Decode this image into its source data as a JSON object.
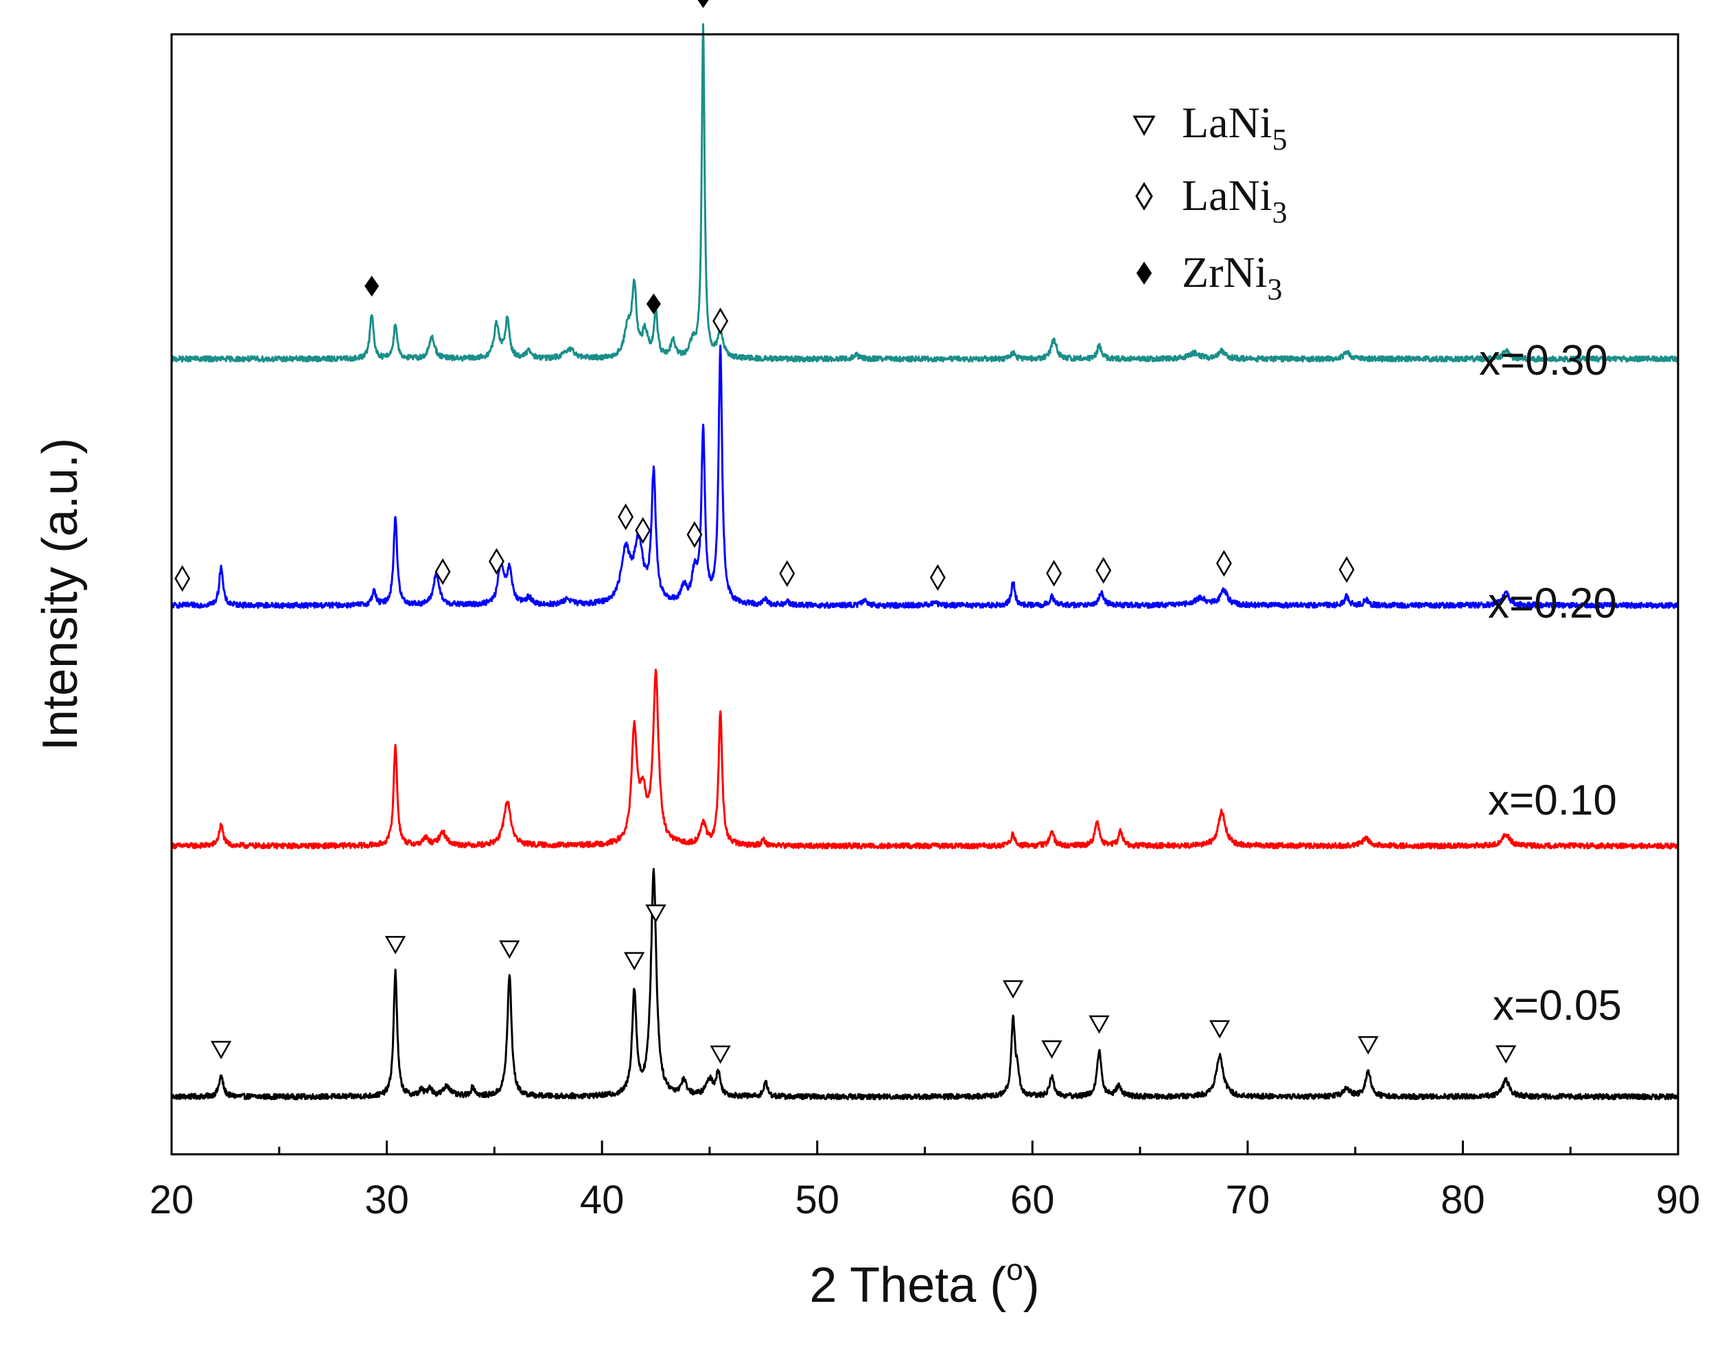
{
  "chart_data": {
    "type": "line",
    "title": "",
    "xlabel": "2 Theta (",
    "xlabel_sup": "o",
    "xlabel_close": ")",
    "ylabel": "Intensity (a.u.)",
    "xlim": [
      20,
      90
    ],
    "x_ticks": [
      20,
      30,
      40,
      50,
      60,
      70,
      80,
      90
    ],
    "x_tick_labels": [
      "20",
      "30",
      "40",
      "50",
      "60",
      "70",
      "80",
      "90"
    ],
    "y_ticks_shown": false,
    "grid": false,
    "legend": {
      "placement": "top-right",
      "entries": [
        {
          "marker": "down-triangle-open",
          "name": "LaNi",
          "sub": "5"
        },
        {
          "marker": "diamond-open",
          "name": "LaNi",
          "sub": "3"
        },
        {
          "marker": "diamond-filled",
          "name": "ZrNi",
          "sub": "3"
        }
      ]
    },
    "series": [
      {
        "name": "x=0.05",
        "color": "#000000",
        "baseline": 0,
        "noise": 0.18,
        "peaks": [
          {
            "x": 22.3,
            "h": 1.4,
            "w": 0.12
          },
          {
            "x": 30.4,
            "h": 8.5,
            "w": 0.1
          },
          {
            "x": 31.6,
            "h": 0.4,
            "w": 0.12
          },
          {
            "x": 32.0,
            "h": 0.6,
            "w": 0.12
          },
          {
            "x": 32.8,
            "h": 0.7,
            "w": 0.2
          },
          {
            "x": 34.0,
            "h": 0.6,
            "w": 0.12
          },
          {
            "x": 35.7,
            "h": 8.2,
            "w": 0.12
          },
          {
            "x": 41.5,
            "h": 7.0,
            "w": 0.12
          },
          {
            "x": 42.4,
            "h": 15.2,
            "w": 0.15
          },
          {
            "x": 43.8,
            "h": 1.0,
            "w": 0.15
          },
          {
            "x": 45.0,
            "h": 1.1,
            "w": 0.2
          },
          {
            "x": 45.4,
            "h": 1.5,
            "w": 0.12
          },
          {
            "x": 47.6,
            "h": 1.0,
            "w": 0.1
          },
          {
            "x": 59.1,
            "h": 5.2,
            "w": 0.1
          },
          {
            "x": 59.3,
            "h": 1.5,
            "w": 0.1
          },
          {
            "x": 60.9,
            "h": 1.4,
            "w": 0.12
          },
          {
            "x": 63.1,
            "h": 3.1,
            "w": 0.12
          },
          {
            "x": 64.0,
            "h": 0.7,
            "w": 0.15
          },
          {
            "x": 68.7,
            "h": 2.8,
            "w": 0.2
          },
          {
            "x": 74.6,
            "h": 0.5,
            "w": 0.2
          },
          {
            "x": 75.6,
            "h": 1.7,
            "w": 0.15
          },
          {
            "x": 82.0,
            "h": 1.1,
            "w": 0.2
          }
        ]
      },
      {
        "name": "x=0.10",
        "color": "#ff0000",
        "baseline": 17,
        "noise": 0.18,
        "peaks": [
          {
            "x": 22.3,
            "h": 1.4,
            "w": 0.12
          },
          {
            "x": 30.4,
            "h": 6.8,
            "w": 0.1
          },
          {
            "x": 31.8,
            "h": 0.5,
            "w": 0.15
          },
          {
            "x": 32.6,
            "h": 0.9,
            "w": 0.2
          },
          {
            "x": 35.6,
            "h": 3.0,
            "w": 0.2
          },
          {
            "x": 41.5,
            "h": 7.5,
            "w": 0.15
          },
          {
            "x": 41.9,
            "h": 3.0,
            "w": 0.2
          },
          {
            "x": 42.5,
            "h": 11.4,
            "w": 0.15
          },
          {
            "x": 44.7,
            "h": 1.5,
            "w": 0.15
          },
          {
            "x": 45.5,
            "h": 9.1,
            "w": 0.1
          },
          {
            "x": 47.5,
            "h": 0.4,
            "w": 0.1
          },
          {
            "x": 59.1,
            "h": 0.8,
            "w": 0.1
          },
          {
            "x": 60.9,
            "h": 1.0,
            "w": 0.12
          },
          {
            "x": 63.0,
            "h": 1.7,
            "w": 0.12
          },
          {
            "x": 64.1,
            "h": 1.0,
            "w": 0.12
          },
          {
            "x": 68.8,
            "h": 2.3,
            "w": 0.2
          },
          {
            "x": 75.5,
            "h": 0.5,
            "w": 0.2
          },
          {
            "x": 82.0,
            "h": 0.8,
            "w": 0.2
          }
        ]
      },
      {
        "name": "x=0.20",
        "color": "#0000ff",
        "baseline": 33.3,
        "noise": 0.18,
        "peaks": [
          {
            "x": 22.3,
            "h": 2.7,
            "w": 0.1
          },
          {
            "x": 29.4,
            "h": 1.0,
            "w": 0.1
          },
          {
            "x": 30.4,
            "h": 6.0,
            "w": 0.1
          },
          {
            "x": 32.3,
            "h": 2.2,
            "w": 0.15
          },
          {
            "x": 35.3,
            "h": 2.8,
            "w": 0.15
          },
          {
            "x": 35.7,
            "h": 2.3,
            "w": 0.15
          },
          {
            "x": 36.6,
            "h": 0.5,
            "w": 0.15
          },
          {
            "x": 38.4,
            "h": 0.4,
            "w": 0.2
          },
          {
            "x": 41.1,
            "h": 3.5,
            "w": 0.25
          },
          {
            "x": 41.7,
            "h": 4.0,
            "w": 0.25
          },
          {
            "x": 42.4,
            "h": 8.6,
            "w": 0.12
          },
          {
            "x": 43.8,
            "h": 1.1,
            "w": 0.15
          },
          {
            "x": 44.3,
            "h": 2.0,
            "w": 0.15
          },
          {
            "x": 44.7,
            "h": 11.6,
            "w": 0.1
          },
          {
            "x": 45.5,
            "h": 17.2,
            "w": 0.1
          },
          {
            "x": 47.6,
            "h": 0.4,
            "w": 0.1
          },
          {
            "x": 48.6,
            "h": 0.3,
            "w": 0.1
          },
          {
            "x": 52.2,
            "h": 0.3,
            "w": 0.15
          },
          {
            "x": 55.4,
            "h": 0.2,
            "w": 0.15
          },
          {
            "x": 59.1,
            "h": 1.6,
            "w": 0.1
          },
          {
            "x": 60.9,
            "h": 0.6,
            "w": 0.12
          },
          {
            "x": 63.2,
            "h": 0.8,
            "w": 0.15
          },
          {
            "x": 67.8,
            "h": 0.5,
            "w": 0.3
          },
          {
            "x": 68.9,
            "h": 1.0,
            "w": 0.2
          },
          {
            "x": 74.6,
            "h": 0.6,
            "w": 0.12
          },
          {
            "x": 75.5,
            "h": 0.4,
            "w": 0.12
          },
          {
            "x": 82.0,
            "h": 0.8,
            "w": 0.2
          }
        ]
      },
      {
        "name": "x=0.30",
        "color": "#1a8f8a",
        "baseline": 50,
        "noise": 0.18,
        "peaks": [
          {
            "x": 29.3,
            "h": 3.1,
            "w": 0.1
          },
          {
            "x": 30.4,
            "h": 2.4,
            "w": 0.1
          },
          {
            "x": 32.1,
            "h": 1.5,
            "w": 0.15
          },
          {
            "x": 35.1,
            "h": 2.3,
            "w": 0.15
          },
          {
            "x": 35.6,
            "h": 2.6,
            "w": 0.12
          },
          {
            "x": 36.6,
            "h": 0.5,
            "w": 0.15
          },
          {
            "x": 38.5,
            "h": 0.6,
            "w": 0.3
          },
          {
            "x": 41.2,
            "h": 2.0,
            "w": 0.2
          },
          {
            "x": 41.5,
            "h": 4.6,
            "w": 0.12
          },
          {
            "x": 42.0,
            "h": 1.8,
            "w": 0.15
          },
          {
            "x": 42.5,
            "h": 3.0,
            "w": 0.1
          },
          {
            "x": 43.3,
            "h": 1.2,
            "w": 0.12
          },
          {
            "x": 44.2,
            "h": 1.0,
            "w": 0.15
          },
          {
            "x": 44.7,
            "h": 22.5,
            "w": 0.08
          },
          {
            "x": 45.5,
            "h": 1.8,
            "w": 0.15
          },
          {
            "x": 51.8,
            "h": 0.3,
            "w": 0.15
          },
          {
            "x": 59.1,
            "h": 0.4,
            "w": 0.12
          },
          {
            "x": 61.0,
            "h": 1.3,
            "w": 0.15
          },
          {
            "x": 63.1,
            "h": 0.9,
            "w": 0.12
          },
          {
            "x": 67.5,
            "h": 0.4,
            "w": 0.3
          },
          {
            "x": 68.8,
            "h": 0.5,
            "w": 0.2
          },
          {
            "x": 74.6,
            "h": 0.5,
            "w": 0.15
          },
          {
            "x": 82.0,
            "h": 0.6,
            "w": 0.15
          }
        ]
      }
    ],
    "series_labels": [
      {
        "text": "x=0.30",
        "series": 3
      },
      {
        "text": "x=0.20",
        "series": 2
      },
      {
        "text": "x=0.10",
        "series": 1
      },
      {
        "text": "x=0.05",
        "series": 0
      }
    ],
    "annotations": [
      {
        "marker": "down-triangle-open",
        "series": 0,
        "x": [
          22.3,
          30.4,
          35.7,
          41.5,
          42.5,
          45.5,
          59.1,
          60.9,
          63.1,
          68.7,
          75.6,
          82.0
        ]
      },
      {
        "marker": "diamond-open",
        "series": 2,
        "x": [
          20.5,
          32.6,
          35.1,
          41.1,
          41.9,
          44.3,
          45.5,
          48.6,
          55.6,
          61.0,
          63.3,
          68.9,
          74.6
        ]
      },
      {
        "marker": "diamond-filled",
        "series": 3,
        "x": [
          29.3,
          42.4,
          44.7
        ]
      }
    ]
  }
}
